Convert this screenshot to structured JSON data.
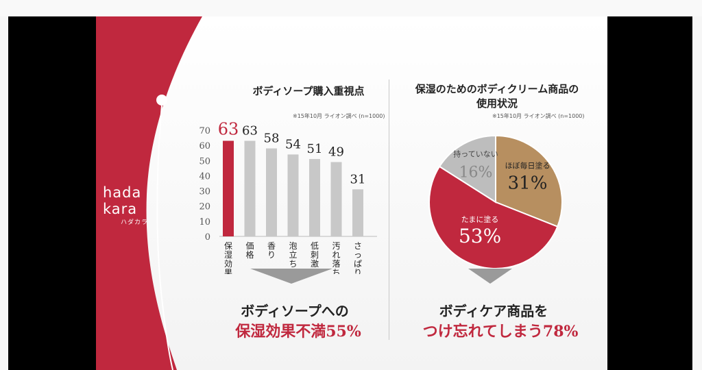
{
  "brand": {
    "line1": "hada",
    "line2": "kara",
    "kana": "ハダカラ"
  },
  "colors": {
    "red": "#c0283e",
    "gray": "#c8c8c8",
    "gold": "#b78f60",
    "pie_gray": "#bdbdbd"
  },
  "left_panel": {
    "title": "ボディソープ購入重視点",
    "note": "※15年10月 ライオン調べ (n=1000)",
    "summary_line1": "ボディソープへの",
    "summary_line2": "保湿効果不満55%"
  },
  "right_panel": {
    "title_line1": "保湿のためのボディクリーム商品の",
    "title_line2": "使用状況",
    "note": "※15年10月 ライオン調べ (n=1000)",
    "summary_line1": "ボディケア商品を",
    "summary_line2": "つけ忘れてしまう78%"
  },
  "chart_data": [
    {
      "type": "bar",
      "title": "ボディソープ購入重視点",
      "categories": [
        "保湿効果",
        "価格",
        "香り",
        "泡立ち",
        "低刺激",
        "汚れ落ち",
        "さっぱり感"
      ],
      "values": [
        63,
        63,
        58,
        54,
        51,
        49,
        31
      ],
      "highlight_index": 0,
      "yticks": [
        "0",
        "10",
        "20",
        "30",
        "40",
        "50",
        "60",
        "70"
      ],
      "ylim": [
        0,
        70
      ],
      "grid": false
    },
    {
      "type": "pie",
      "title": "保湿のためのボディクリーム商品の使用状況",
      "slices": [
        {
          "label": "ほぼ毎日塗る",
          "value": 31,
          "value_label": "31%"
        },
        {
          "label": "たまに塗る",
          "value": 53,
          "value_label": "53%"
        },
        {
          "label": "持っていない",
          "value": 16,
          "value_label": "16%"
        }
      ]
    }
  ]
}
